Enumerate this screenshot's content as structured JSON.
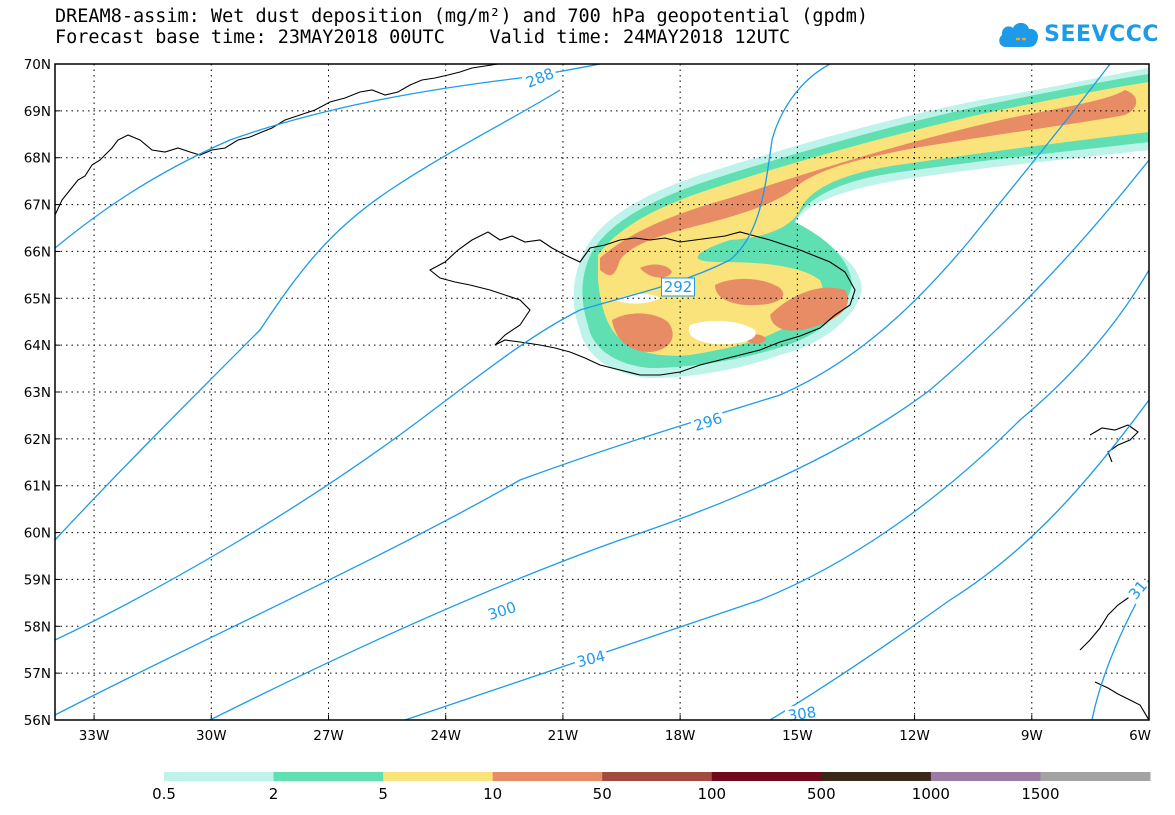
{
  "header": {
    "title_line1": "DREAM8-assim: Wet dust deposition (mg/m²) and 700 hPa geopotential (gpdm)",
    "title_line2": "Forecast base time: 23MAY2018 00UTC    Valid time: 24MAY2018 12UTC"
  },
  "logo": {
    "text": "SEEVCCC",
    "icon": "cloud-logo-icon",
    "color": "#1e9be8"
  },
  "map": {
    "region": "Iceland and surrounding North Atlantic",
    "lon_range": [
      -34,
      -6
    ],
    "lat_range": [
      56,
      70
    ],
    "lat_ticks": [
      "56N",
      "57N",
      "58N",
      "59N",
      "60N",
      "61N",
      "62N",
      "63N",
      "64N",
      "65N",
      "66N",
      "67N",
      "68N",
      "69N",
      "70N"
    ],
    "lon_ticks": [
      "33W",
      "30W",
      "27W",
      "24W",
      "21W",
      "18W",
      "15W",
      "12W",
      "9W",
      "6W"
    ],
    "grid": true,
    "contour_color": "#1e9be8",
    "contour_labels": [
      "288",
      "292",
      "296",
      "300",
      "304",
      "308",
      "31"
    ]
  },
  "legend": {
    "labels": [
      "0.5",
      "2",
      "5",
      "10",
      "50",
      "100",
      "500",
      "1000",
      "1500"
    ],
    "colors": [
      "#bdf3e9",
      "#5fdfb2",
      "#f9e37a",
      "#e88c66",
      "#a34a3e",
      "#700a1a",
      "#3a2718",
      "#9c7aa6",
      "#a3a3a3"
    ]
  }
}
